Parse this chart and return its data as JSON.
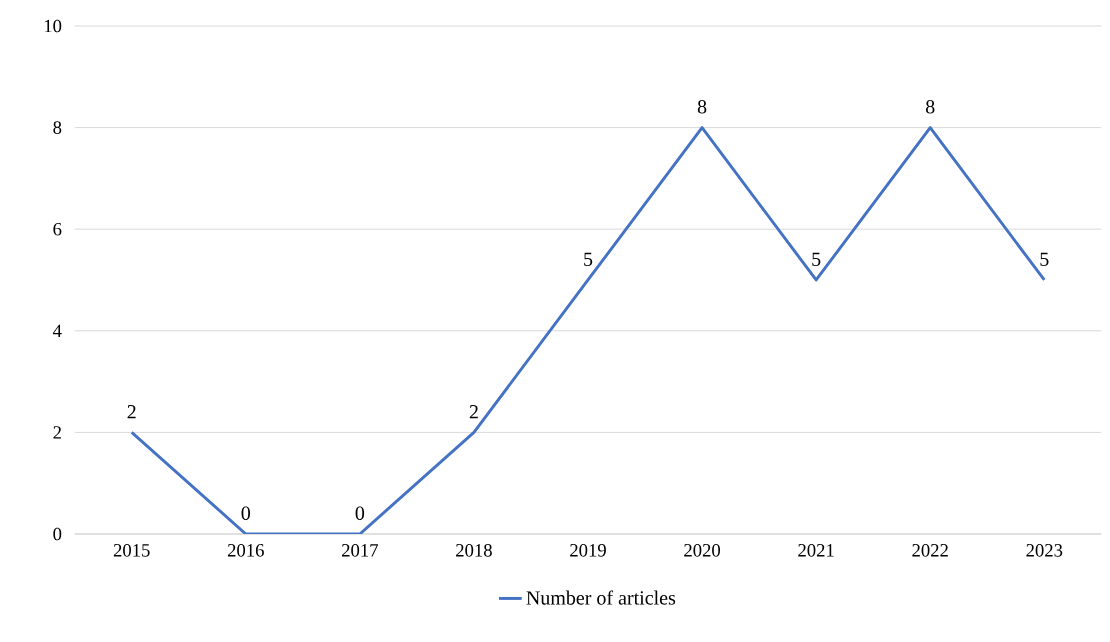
{
  "chart_data": {
    "type": "line",
    "categories": [
      "2015",
      "2016",
      "2017",
      "2018",
      "2019",
      "2020",
      "2021",
      "2022",
      "2023"
    ],
    "series": [
      {
        "name": "Number of articles",
        "color": "#4472c4",
        "values": [
          2,
          0,
          0,
          2,
          5,
          8,
          5,
          8,
          5
        ]
      }
    ],
    "ylim": [
      0,
      10
    ],
    "yticks": [
      0,
      2,
      4,
      6,
      8,
      10
    ],
    "grid": "y",
    "legend": "bottom",
    "data_labels": true,
    "marker": "none",
    "line_style": "solid"
  }
}
